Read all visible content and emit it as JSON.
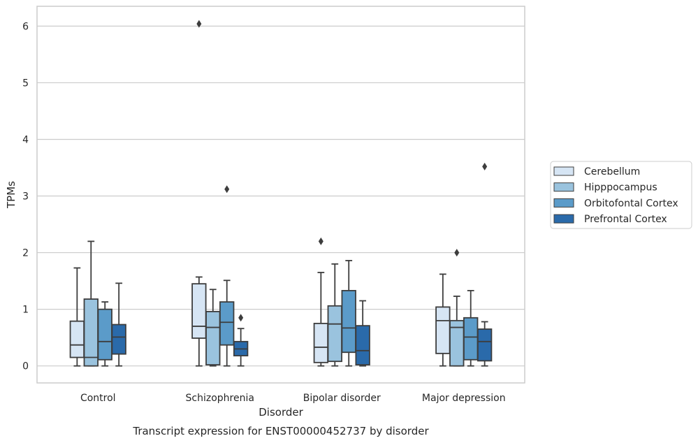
{
  "chart_data": {
    "type": "box",
    "title": "Transcript expression for ENST00000452737 by disorder",
    "xlabel": "Disorder",
    "ylabel": "TPMs",
    "ylim": [
      -0.3,
      6.35
    ],
    "yticks": [
      "0",
      "1",
      "2",
      "3",
      "4",
      "5",
      "6"
    ],
    "grid": "horizontal",
    "legend_position": "right",
    "categories": [
      "Control",
      "Schizophrenia",
      "Bipolar disorder",
      "Major depression"
    ],
    "series": [
      {
        "name": "Cerebellum",
        "color": "#d6e5f4",
        "boxes": [
          {
            "whislo": 0.0,
            "q1": 0.15,
            "med": 0.37,
            "q3": 0.79,
            "whishi": 1.73,
            "fliers": []
          },
          {
            "whislo": 0.0,
            "q1": 0.49,
            "med": 0.7,
            "q3": 1.45,
            "whishi": 1.57,
            "fliers": [
              6.04
            ]
          },
          {
            "whislo": 0.0,
            "q1": 0.06,
            "med": 0.33,
            "q3": 0.75,
            "whishi": 1.65,
            "fliers": [
              2.2
            ]
          },
          {
            "whislo": 0.0,
            "q1": 0.22,
            "med": 0.8,
            "q3": 1.04,
            "whishi": 1.62,
            "fliers": []
          }
        ]
      },
      {
        "name": "Hipppocampus",
        "color": "#9ac3de",
        "boxes": [
          {
            "whislo": 0.0,
            "q1": 0.0,
            "med": 0.15,
            "q3": 1.18,
            "whishi": 2.2,
            "fliers": []
          },
          {
            "whislo": 0.0,
            "q1": 0.02,
            "med": 0.68,
            "q3": 0.96,
            "whishi": 1.35,
            "fliers": []
          },
          {
            "whislo": 0.0,
            "q1": 0.08,
            "med": 0.74,
            "q3": 1.06,
            "whishi": 1.8,
            "fliers": []
          },
          {
            "whislo": 0.0,
            "q1": 0.0,
            "med": 0.68,
            "q3": 0.8,
            "whishi": 1.23,
            "fliers": [
              2.0
            ]
          }
        ]
      },
      {
        "name": "Orbitofontal Cortex",
        "color": "#5b9bc9",
        "boxes": [
          {
            "whislo": 0.0,
            "q1": 0.11,
            "med": 0.43,
            "q3": 1.0,
            "whishi": 1.13,
            "fliers": []
          },
          {
            "whislo": 0.0,
            "q1": 0.37,
            "med": 0.77,
            "q3": 1.13,
            "whishi": 1.51,
            "fliers": [
              3.12
            ]
          },
          {
            "whislo": 0.0,
            "q1": 0.24,
            "med": 0.67,
            "q3": 1.33,
            "whishi": 1.86,
            "fliers": []
          },
          {
            "whislo": 0.0,
            "q1": 0.11,
            "med": 0.51,
            "q3": 0.85,
            "whishi": 1.33,
            "fliers": []
          }
        ]
      },
      {
        "name": "Prefrontal Cortex",
        "color": "#2a6aaa",
        "boxes": [
          {
            "whislo": 0.0,
            "q1": 0.21,
            "med": 0.51,
            "q3": 0.73,
            "whishi": 1.46,
            "fliers": []
          },
          {
            "whislo": 0.0,
            "q1": 0.18,
            "med": 0.3,
            "q3": 0.43,
            "whishi": 0.66,
            "fliers": [
              0.85
            ]
          },
          {
            "whislo": 0.0,
            "q1": 0.02,
            "med": 0.27,
            "q3": 0.71,
            "whishi": 1.15,
            "fliers": []
          },
          {
            "whislo": 0.0,
            "q1": 0.09,
            "med": 0.43,
            "q3": 0.65,
            "whishi": 0.78,
            "fliers": [
              3.52
            ]
          }
        ]
      }
    ]
  }
}
